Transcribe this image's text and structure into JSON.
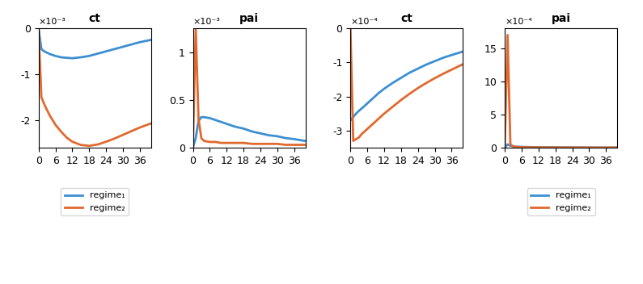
{
  "chart_data": [
    {
      "type": "line",
      "title": "ct",
      "annotations": [
        "×10⁻³"
      ],
      "x": [
        0,
        1,
        2,
        3,
        4,
        6,
        8,
        10,
        12,
        15,
        18,
        21,
        24,
        27,
        30,
        33,
        36,
        40
      ],
      "series": [
        {
          "name": "regime₁",
          "color": "#3b8fd1",
          "values": [
            0,
            -0.45,
            -0.5,
            -0.53,
            -0.56,
            -0.6,
            -0.63,
            -0.64,
            -0.65,
            -0.63,
            -0.6,
            -0.55,
            -0.5,
            -0.45,
            -0.4,
            -0.35,
            -0.3,
            -0.25
          ]
        },
        {
          "name": "regime₂",
          "color": "#e0692f",
          "values": [
            0,
            -1.5,
            -1.65,
            -1.78,
            -1.9,
            -2.1,
            -2.25,
            -2.38,
            -2.47,
            -2.54,
            -2.56,
            -2.53,
            -2.47,
            -2.4,
            -2.32,
            -2.24,
            -2.16,
            -2.07
          ]
        }
      ],
      "xlim": [
        0,
        40
      ],
      "xticks": [
        0,
        6,
        12,
        18,
        24,
        30,
        36
      ],
      "ylim": [
        -2.6,
        0
      ],
      "yticks": [
        -2,
        -1,
        0
      ],
      "legend": "lower center"
    },
    {
      "type": "line",
      "title": "pai",
      "annotations": [
        "×10⁻³"
      ],
      "x": [
        0,
        1,
        2,
        3,
        4,
        6,
        8,
        10,
        12,
        15,
        18,
        21,
        24,
        27,
        30,
        33,
        36,
        40
      ],
      "series": [
        {
          "name": "regime₁",
          "color": "#3b8fd1",
          "values": [
            0,
            0.1,
            0.28,
            0.32,
            0.32,
            0.31,
            0.29,
            0.27,
            0.25,
            0.22,
            0.2,
            0.17,
            0.15,
            0.13,
            0.12,
            0.1,
            0.09,
            0.07
          ]
        },
        {
          "name": "regime₂",
          "color": "#e0692f",
          "values": [
            0,
            1.25,
            0.3,
            0.1,
            0.07,
            0.06,
            0.06,
            0.05,
            0.05,
            0.05,
            0.05,
            0.04,
            0.04,
            0.04,
            0.04,
            0.03,
            0.03,
            0.03
          ]
        }
      ],
      "xlim": [
        0,
        40
      ],
      "xticks": [
        0,
        6,
        12,
        18,
        24,
        30,
        36
      ],
      "ylim": [
        0,
        1.25
      ],
      "yticks": [
        0,
        0.5,
        1
      ]
    },
    {
      "type": "line",
      "title": "ct",
      "annotations": [
        "×10⁻⁴"
      ],
      "x": [
        0,
        1,
        2,
        3,
        4,
        6,
        8,
        10,
        12,
        15,
        18,
        21,
        24,
        27,
        30,
        33,
        36,
        40
      ],
      "series": [
        {
          "name": "regime₁",
          "color": "#3b8fd1",
          "values": [
            -2.7,
            -2.6,
            -2.5,
            -2.42,
            -2.35,
            -2.2,
            -2.05,
            -1.9,
            -1.77,
            -1.6,
            -1.45,
            -1.3,
            -1.18,
            -1.06,
            -0.96,
            -0.86,
            -0.78,
            -0.68
          ]
        },
        {
          "name": "regime₂",
          "color": "#e0692f",
          "values": [
            0,
            -3.3,
            -3.25,
            -3.2,
            -3.1,
            -2.95,
            -2.8,
            -2.65,
            -2.5,
            -2.3,
            -2.1,
            -1.92,
            -1.75,
            -1.6,
            -1.46,
            -1.33,
            -1.21,
            -1.05
          ]
        }
      ],
      "xlim": [
        0,
        40
      ],
      "xticks": [
        0,
        6,
        12,
        18,
        24,
        30,
        36
      ],
      "ylim": [
        -3.5,
        0
      ],
      "yticks": [
        -3,
        -2,
        -1,
        0
      ]
    },
    {
      "type": "line",
      "title": "pai",
      "annotations": [
        "×10⁻⁴"
      ],
      "x": [
        0,
        1,
        2,
        3,
        4,
        6,
        8,
        10,
        12,
        15,
        18,
        21,
        24,
        27,
        30,
        33,
        36,
        40
      ],
      "series": [
        {
          "name": "regime₁",
          "color": "#3b8fd1",
          "values": [
            0,
            0.5,
            0.3,
            0.2,
            0.15,
            0.12,
            0.1,
            0.08,
            0.07,
            0.06,
            0.05,
            0.04,
            0.04,
            0.03,
            0.03,
            0.02,
            0.02,
            0.02
          ]
        },
        {
          "name": "regime₂",
          "color": "#e0692f",
          "values": [
            0,
            17,
            0.5,
            0.2,
            0.1,
            0.08,
            0.06,
            0.05,
            0.04,
            0.03,
            0.03,
            0.02,
            0.02,
            0.02,
            0.01,
            0.01,
            0.01,
            0.01
          ]
        }
      ],
      "xlim": [
        0,
        40
      ],
      "xticks": [
        0,
        6,
        12,
        18,
        24,
        30,
        36
      ],
      "ylim": [
        0,
        18
      ],
      "yticks": [
        0,
        5,
        10,
        15
      ],
      "legend": "lower center"
    }
  ]
}
